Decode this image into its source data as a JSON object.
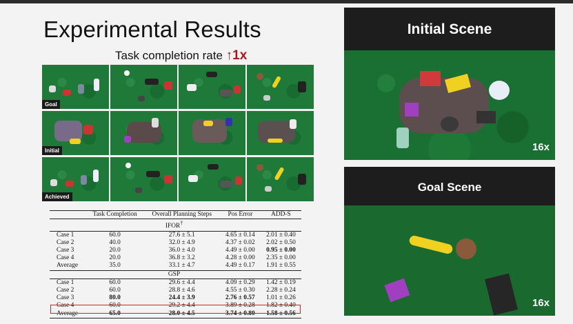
{
  "slide": {
    "title": "Experimental Results",
    "subtitle_prefix": "Task completion rate ",
    "subtitle_arrow": "↑1x",
    "row_labels": [
      "Goal",
      "Initial",
      "Achieved"
    ]
  },
  "table": {
    "headers": [
      "",
      "Task Completion",
      "Overall Planning Steps",
      "Pos Error",
      "ADD-S"
    ],
    "sections": [
      {
        "name": "IFOR",
        "rows": [
          [
            "Case 1",
            "60.0",
            "27.6 ± 5.1",
            "4.65 ± 0.14",
            "2.01 ± 0.40"
          ],
          [
            "Case 2",
            "40.0",
            "32.0 ± 4.9",
            "4.37 ± 0.02",
            "2.02 ± 0.50"
          ],
          [
            "Case 3",
            "20.0",
            "36.0 ± 4.0",
            "4.49 ± 0.00",
            "0.95 ± 0.00"
          ],
          [
            "Case 4",
            "20.0",
            "36.8 ± 3.2",
            "4.28 ± 0.00",
            "2.35 ± 0.00"
          ],
          [
            "Average",
            "35.0",
            "33.1 ± 4.7",
            "4.49 ± 0.17",
            "1.91 ± 0.55"
          ]
        ]
      },
      {
        "name": "GSP",
        "rows": [
          [
            "Case 1",
            "60.0",
            "29.6 ± 4.4",
            "4.09 ± 0.29",
            "1.42 ± 0.19"
          ],
          [
            "Case 2",
            "60.0",
            "28.8 ± 4.6",
            "4.55 ± 0.30",
            "2.28 ± 0.24"
          ],
          [
            "Case 3",
            "80.0",
            "24.4 ± 3.9",
            "2.76 ± 0.57",
            "1.01 ± 0.26"
          ],
          [
            "Case 4",
            "60.0",
            "29.2 ± 4.4",
            "3.89 ± 0.28",
            "1.82 ± 0.40"
          ],
          [
            "Average",
            "65.0",
            "28.0 ± 4.5",
            "3.74 ± 0.80",
            "1.58 ± 0.56"
          ]
        ]
      }
    ]
  },
  "panels": {
    "initial": {
      "title": "Initial Scene",
      "zoom": "16x"
    },
    "goal": {
      "title": "Goal Scene",
      "zoom": "16x"
    }
  },
  "colors": {
    "accent_red": "#a31b1b",
    "highlight_box": "#d32222",
    "table_green": "#1a6f32"
  }
}
